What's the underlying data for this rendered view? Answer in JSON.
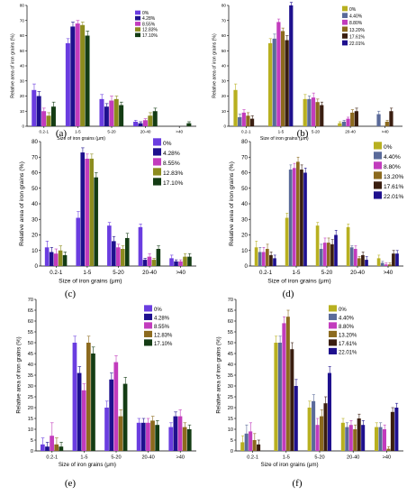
{
  "chart_data": [
    {
      "id": "a",
      "panel_label": "(a)",
      "type": "bar",
      "xlabel": "Size of iron grains (μm)",
      "ylabel": "Relative area of iron grains (%)",
      "ylim": [
        0,
        80
      ],
      "yticks": [
        0,
        10,
        20,
        30,
        40,
        50,
        60,
        70,
        80
      ],
      "categories": [
        "0.2-1",
        "1-5",
        "5-20",
        "20-40",
        ">40"
      ],
      "legend_position": "top-right",
      "grid": false,
      "series": [
        {
          "name": "0%",
          "color": "#6a3de0",
          "values": [
            24,
            55,
            18,
            3,
            0
          ],
          "errors": [
            4,
            3,
            3,
            1,
            0
          ]
        },
        {
          "name": "4.28%",
          "color": "#1e108e",
          "values": [
            20,
            66,
            13,
            2,
            0
          ],
          "errors": [
            3,
            3,
            2,
            1,
            0
          ]
        },
        {
          "name": "8.55%",
          "color": "#c23cbd",
          "values": [
            10,
            68,
            17,
            4,
            0
          ],
          "errors": [
            2,
            2,
            3,
            1,
            0
          ]
        },
        {
          "name": "12.83%",
          "color": "#8c8c1e",
          "values": [
            7,
            67,
            18,
            7,
            0
          ],
          "errors": [
            2,
            2,
            2,
            2,
            0
          ]
        },
        {
          "name": "17.10%",
          "color": "#143c14",
          "values": [
            13,
            60,
            14,
            10,
            2
          ],
          "errors": [
            3,
            3,
            2,
            2,
            1
          ]
        }
      ]
    },
    {
      "id": "b",
      "panel_label": "(b)",
      "type": "bar",
      "xlabel": "Size of iron grains (μm)",
      "ylabel": "Relative area of iron grains (%)",
      "ylim": [
        0,
        80
      ],
      "yticks": [
        0,
        10,
        20,
        30,
        40,
        50,
        60,
        70,
        80
      ],
      "categories": [
        "0.2-1",
        "1-5",
        "5-20",
        "20-40",
        ">40"
      ],
      "legend_position": "top-right",
      "grid": false,
      "series": [
        {
          "name": "0%",
          "color": "#b8b020",
          "values": [
            24,
            55,
            18,
            2,
            0
          ],
          "errors": [
            4,
            3,
            3,
            1,
            0
          ]
        },
        {
          "name": "4.40%",
          "color": "#5a6a9a",
          "values": [
            6,
            58,
            18,
            3,
            8
          ],
          "errors": [
            2,
            3,
            2,
            1,
            2
          ]
        },
        {
          "name": "8.80%",
          "color": "#c23cbd",
          "values": [
            9,
            69,
            19,
            5,
            0
          ],
          "errors": [
            2,
            2,
            3,
            1,
            0
          ]
        },
        {
          "name": "13.20%",
          "color": "#8c6a1e",
          "values": [
            7,
            63,
            16,
            9,
            3
          ],
          "errors": [
            2,
            2,
            2,
            2,
            1
          ]
        },
        {
          "name": "17.61%",
          "color": "#3a1e10",
          "values": [
            5,
            57,
            14,
            10,
            10
          ],
          "errors": [
            2,
            3,
            2,
            2,
            2
          ]
        },
        {
          "name": "22.01%",
          "color": "#1e108e",
          "values": [
            0,
            80,
            0,
            0,
            0
          ],
          "errors": [
            0,
            2,
            0,
            0,
            0
          ]
        }
      ]
    },
    {
      "id": "c",
      "panel_label": "(c)",
      "type": "bar",
      "xlabel": "Size of iron grains (μm)",
      "ylabel": "Relative area of iron grains (%)",
      "ylim": [
        0,
        80
      ],
      "yticks": [
        0,
        10,
        20,
        30,
        40,
        50,
        60,
        70,
        80
      ],
      "categories": [
        "0.2-1",
        "1-5",
        "5-20",
        "20-40",
        ">40"
      ],
      "legend_position": "top-right",
      "grid": false,
      "series": [
        {
          "name": "0%",
          "color": "#6a3de0",
          "values": [
            12,
            31,
            26,
            25,
            5
          ],
          "errors": [
            4,
            4,
            2,
            2,
            2
          ]
        },
        {
          "name": "4.28%",
          "color": "#1e108e",
          "values": [
            9,
            73,
            16,
            4,
            3
          ],
          "errors": [
            3,
            3,
            3,
            1,
            1
          ]
        },
        {
          "name": "8.55%",
          "color": "#c23cbd",
          "values": [
            8,
            69,
            12,
            6,
            3
          ],
          "errors": [
            3,
            3,
            2,
            2,
            1
          ]
        },
        {
          "name": "12.83%",
          "color": "#8c8c1e",
          "values": [
            10,
            69,
            11,
            4,
            6
          ],
          "errors": [
            3,
            3,
            2,
            1,
            2
          ]
        },
        {
          "name": "17.10%",
          "color": "#143c14",
          "values": [
            7,
            57,
            18,
            11,
            6
          ],
          "errors": [
            2,
            3,
            3,
            2,
            2
          ]
        }
      ]
    },
    {
      "id": "d",
      "panel_label": "(d)",
      "type": "bar",
      "xlabel": "Size of iron grains (μm)",
      "ylabel": "Relative area of iron grains (%)",
      "ylim": [
        0,
        80
      ],
      "yticks": [
        0,
        10,
        20,
        30,
        40,
        50,
        60,
        70,
        80
      ],
      "categories": [
        "0.2-1",
        "1-5",
        "5-20",
        "20-40",
        ">40"
      ],
      "legend_position": "top-right",
      "grid": false,
      "series": [
        {
          "name": "0%",
          "color": "#b8b020",
          "values": [
            12,
            31,
            26,
            25,
            5
          ],
          "errors": [
            4,
            3,
            2,
            2,
            2
          ]
        },
        {
          "name": "4.40%",
          "color": "#5a6a9a",
          "values": [
            9,
            62,
            11,
            12,
            2
          ],
          "errors": [
            3,
            3,
            3,
            1,
            1
          ]
        },
        {
          "name": "8.80%",
          "color": "#c23cbd",
          "values": [
            9,
            63,
            15,
            11,
            1
          ],
          "errors": [
            3,
            3,
            3,
            2,
            1
          ]
        },
        {
          "name": "13.20%",
          "color": "#8c6a1e",
          "values": [
            11,
            67,
            15,
            5,
            1
          ],
          "errors": [
            3,
            3,
            3,
            1,
            1
          ]
        },
        {
          "name": "17.61%",
          "color": "#3a1e10",
          "values": [
            7,
            62,
            14,
            7,
            8
          ],
          "errors": [
            2,
            3,
            3,
            2,
            2
          ]
        },
        {
          "name": "22.01%",
          "color": "#1e108e",
          "values": [
            5,
            60,
            20,
            4,
            8
          ],
          "errors": [
            2,
            3,
            3,
            2,
            2
          ]
        }
      ]
    },
    {
      "id": "e",
      "panel_label": "(e)",
      "type": "bar",
      "xlabel": "Size of iron grains (μm)",
      "ylabel": "Relative area of iron grains (%)",
      "ylim": [
        0,
        70
      ],
      "yticks": [
        0,
        5,
        10,
        15,
        20,
        25,
        30,
        35,
        40,
        45,
        50,
        55,
        60,
        65,
        70
      ],
      "categories": [
        "0.2-1",
        "1-5",
        "5-20",
        "20-40",
        ">40"
      ],
      "legend_position": "top-right",
      "grid": false,
      "series": [
        {
          "name": "0%",
          "color": "#6a3de0",
          "values": [
            3,
            50,
            20,
            13,
            11
          ],
          "errors": [
            3,
            3,
            3,
            2,
            2
          ]
        },
        {
          "name": "4.28%",
          "color": "#1e108e",
          "values": [
            2,
            36,
            33,
            13,
            16
          ],
          "errors": [
            2,
            3,
            3,
            2,
            2
          ]
        },
        {
          "name": "8.55%",
          "color": "#c23cbd",
          "values": [
            7,
            28,
            41,
            13,
            16
          ],
          "errors": [
            6,
            3,
            3,
            2,
            3
          ]
        },
        {
          "name": "12.83%",
          "color": "#8c6a1e",
          "values": [
            3,
            50,
            16,
            14,
            11
          ],
          "errors": [
            3,
            3,
            3,
            2,
            2
          ]
        },
        {
          "name": "17.10%",
          "color": "#143c14",
          "values": [
            2,
            45,
            31,
            12,
            10
          ],
          "errors": [
            2,
            3,
            3,
            2,
            2
          ]
        }
      ]
    },
    {
      "id": "f",
      "panel_label": "(f)",
      "type": "bar",
      "xlabel": "Size of iron grains (μm)",
      "ylabel": "Relative area of iron grains (%)",
      "ylim": [
        0,
        70
      ],
      "yticks": [
        0,
        5,
        10,
        15,
        20,
        25,
        30,
        35,
        40,
        45,
        50,
        55,
        60,
        65,
        70
      ],
      "categories": [
        "0.2-1",
        "1-5",
        "5-20",
        "20-40",
        ">40"
      ],
      "legend_position": "top-right",
      "grid": false,
      "series": [
        {
          "name": "0%",
          "color": "#b8b020",
          "values": [
            4,
            50,
            20,
            13,
            11
          ],
          "errors": [
            3,
            3,
            3,
            2,
            2
          ]
        },
        {
          "name": "4.40%",
          "color": "#5a6a9a",
          "values": [
            8,
            50,
            23,
            11,
            11
          ],
          "errors": [
            4,
            3,
            3,
            2,
            2
          ]
        },
        {
          "name": "8.80%",
          "color": "#c23cbd",
          "values": [
            9,
            59,
            12,
            12,
            10
          ],
          "errors": [
            4,
            3,
            3,
            2,
            2
          ]
        },
        {
          "name": "13.20%",
          "color": "#8c6a1e",
          "values": [
            5,
            62,
            16,
            10,
            1
          ],
          "errors": [
            3,
            3,
            3,
            2,
            1
          ]
        },
        {
          "name": "17.61%",
          "color": "#3a1e10",
          "values": [
            3,
            47,
            22,
            15,
            18
          ],
          "errors": [
            2,
            3,
            3,
            2,
            2
          ]
        },
        {
          "name": "22.01%",
          "color": "#1e108e",
          "values": [
            0,
            30,
            36,
            12,
            20
          ],
          "errors": [
            0,
            3,
            3,
            2,
            2
          ]
        }
      ]
    }
  ]
}
